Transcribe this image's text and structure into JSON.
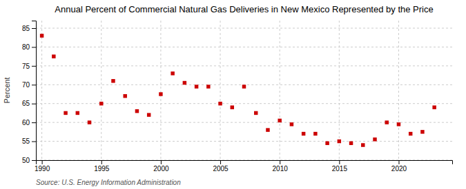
{
  "chart_data": {
    "type": "scatter",
    "title": "Annual Percent of Commercial Natural Gas Deliveries in New Mexico Represented by the Price",
    "ylabel": "Percent",
    "annotations": [
      "Source: U.S. Energy Information Administration"
    ],
    "x": [
      1990,
      1991,
      1992,
      1993,
      1994,
      1995,
      1996,
      1997,
      1998,
      1999,
      2000,
      2001,
      2002,
      2003,
      2004,
      2005,
      2006,
      2007,
      2008,
      2009,
      2010,
      2011,
      2012,
      2013,
      2014,
      2015,
      2016,
      2017,
      2018,
      2019,
      2020,
      2021,
      2022,
      2023
    ],
    "values": [
      83,
      77.5,
      62.5,
      62.5,
      60,
      65,
      71,
      67,
      63,
      62,
      67.5,
      73,
      70.5,
      69.5,
      69.5,
      65,
      64,
      69.5,
      62.5,
      58,
      60.5,
      59.5,
      57,
      57,
      54.5,
      55,
      54.5,
      54,
      55.5,
      60,
      59.5,
      57,
      57.5,
      64
    ],
    "color": "#cc0000",
    "marker": "square",
    "xlim": [
      1989.5,
      2024.5
    ],
    "ylim": [
      50,
      87
    ],
    "xticks": [
      1990,
      1995,
      2000,
      2005,
      2010,
      2015,
      2020
    ],
    "yticks": [
      50,
      55,
      60,
      65,
      70,
      75,
      80,
      85
    ],
    "grid": true
  }
}
